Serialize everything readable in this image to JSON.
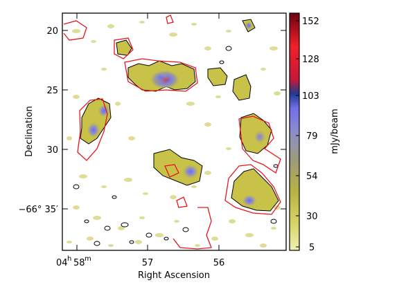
{
  "image": {
    "x_axis_title": "Right Ascension",
    "y_axis_title": "Declination",
    "y_ticks": [
      "20",
      "25",
      "30",
      "−66° 35′"
    ],
    "x_ticks": [
      {
        "h": "04",
        "hu": "h",
        "m": "58",
        "mu": "m"
      },
      {
        "m": "57"
      },
      {
        "m": "56"
      }
    ],
    "colorbar": {
      "unit_label": "mJy/beam",
      "ticks": [
        "152",
        "128",
        "103",
        "79",
        "54",
        "30",
        "5"
      ],
      "range": [
        5,
        152
      ],
      "colors": [
        "#ecec9a",
        "#c8c241",
        "#9a9a60",
        "#8a8ac0",
        "#7878e6",
        "#1d3a8a",
        "#e0202a",
        "#7a0010"
      ]
    },
    "contour_colors": {
      "black": "#000000",
      "red": "#e8141c"
    }
  }
}
